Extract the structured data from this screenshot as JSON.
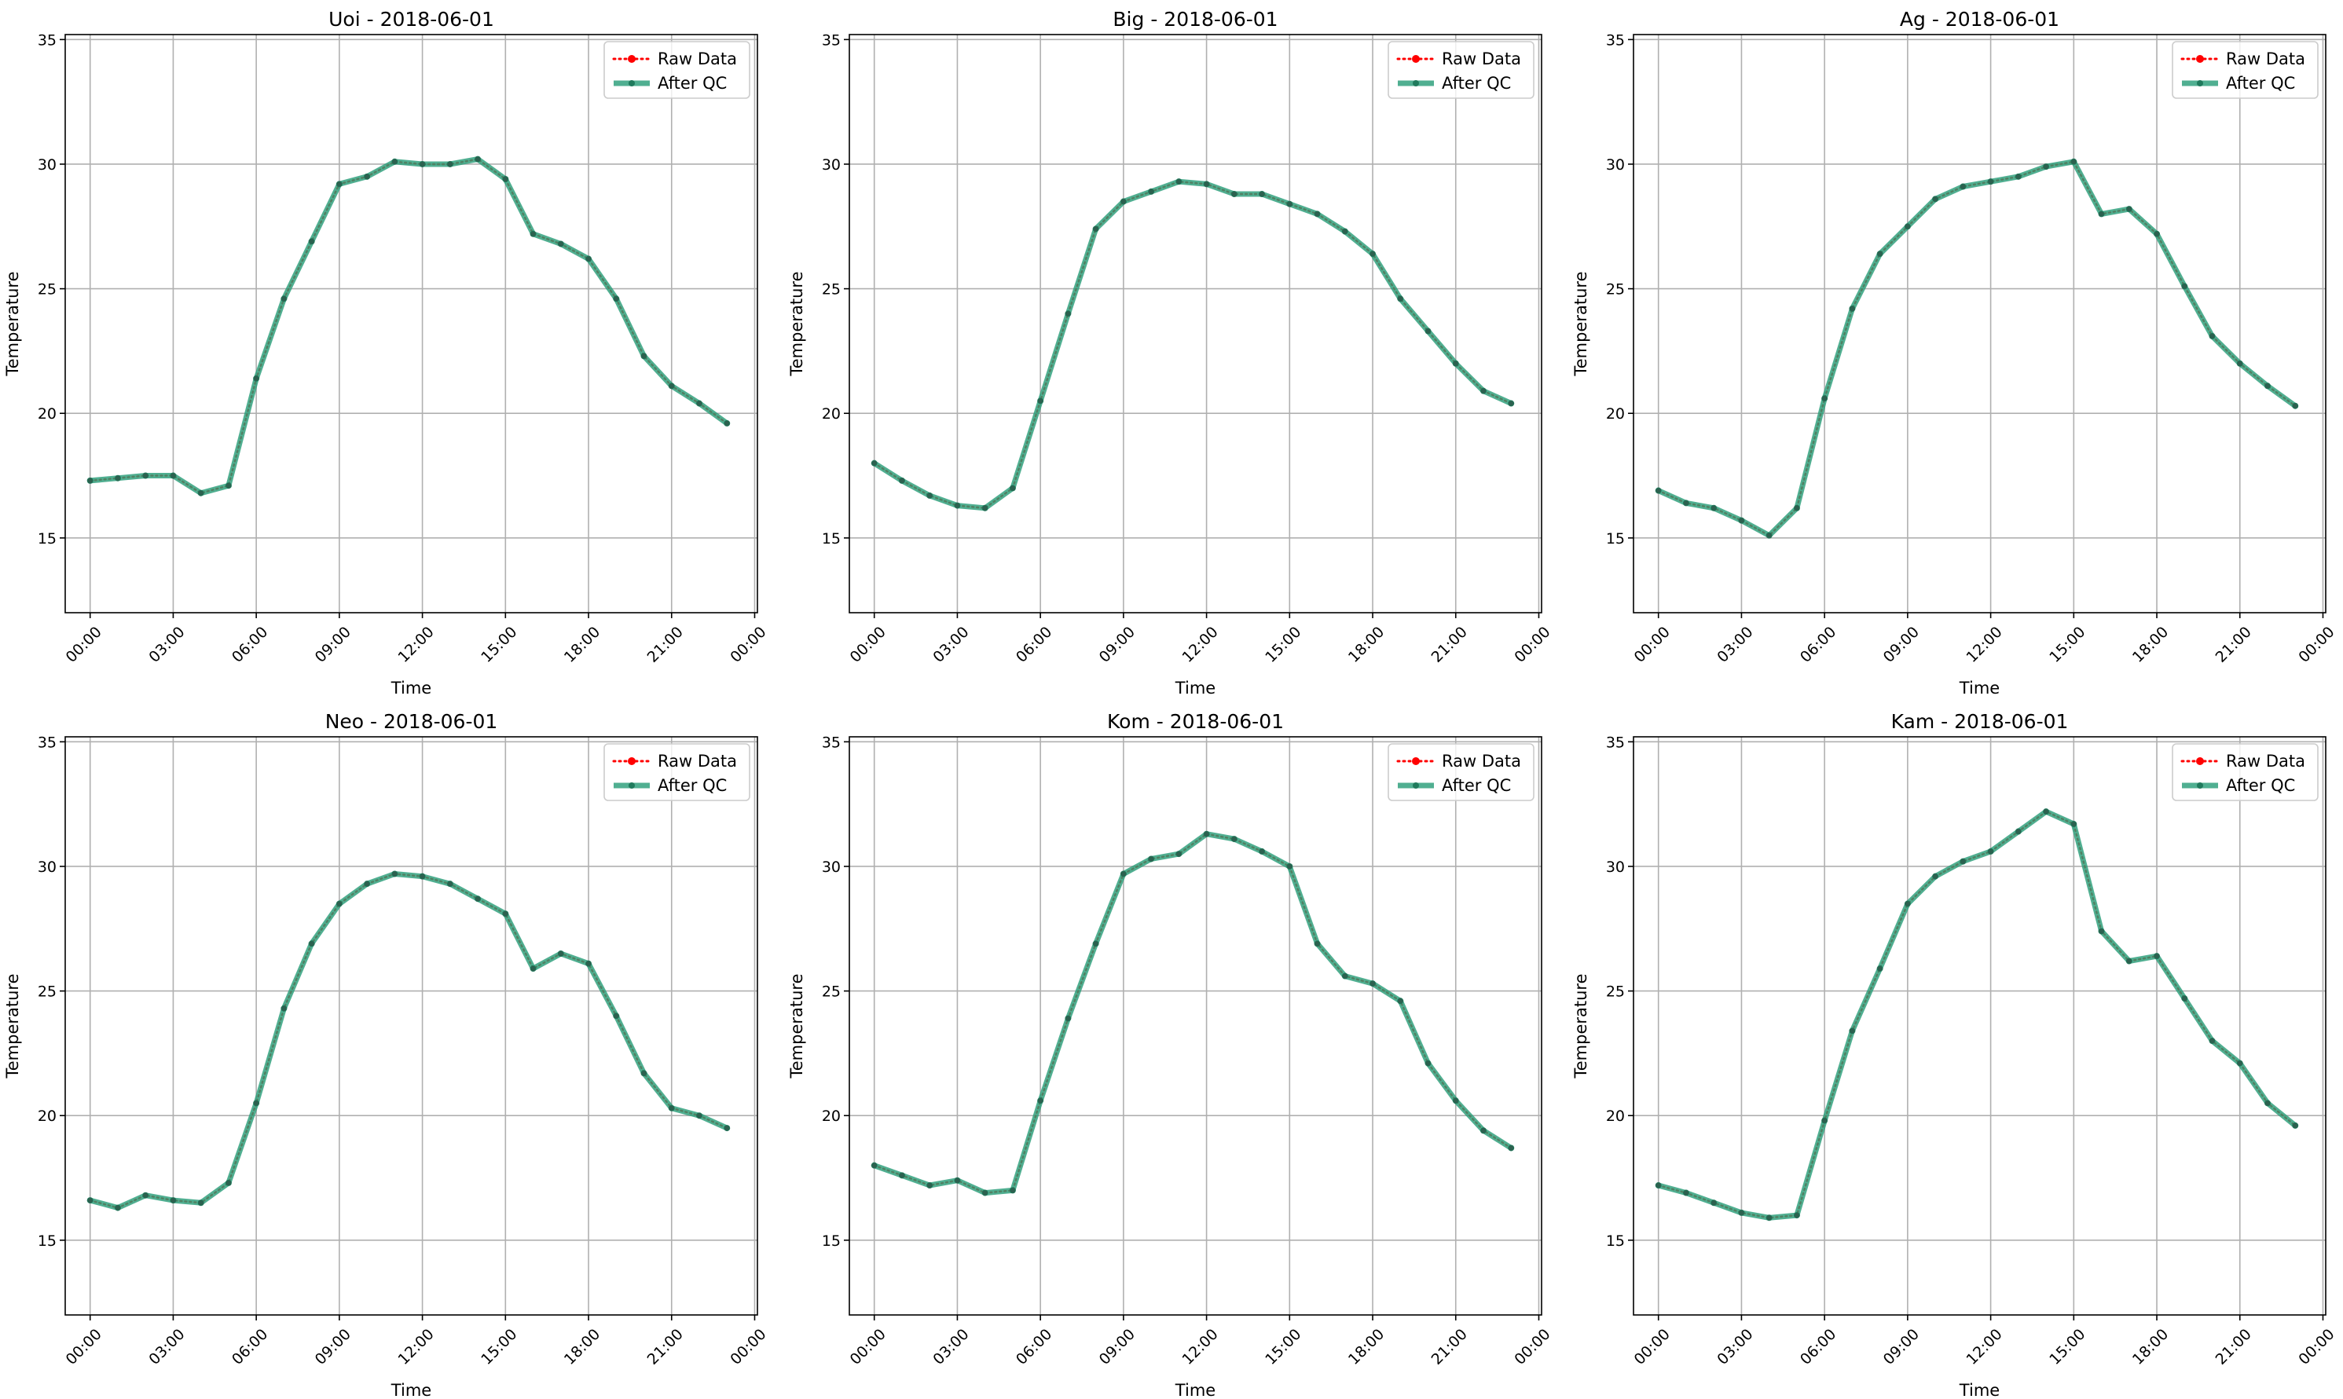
{
  "chart_data": [
    {
      "type": "line",
      "title": "Uoi - 2018-06-01",
      "xlabel": "Time",
      "ylabel": "Temperature",
      "ylim": [
        12,
        35.2
      ],
      "yticks": [
        15,
        20,
        25,
        30,
        35
      ],
      "xlim": [
        -0.9,
        24.1
      ],
      "xticks": [
        0,
        3,
        6,
        9,
        12,
        15,
        18,
        21,
        24
      ],
      "xtick_labels": [
        "00:00",
        "03:00",
        "06:00",
        "09:00",
        "12:00",
        "15:00",
        "18:00",
        "21:00",
        "00:00"
      ],
      "grid": true,
      "legend_placement": "upper-right",
      "x": [
        0,
        1,
        2,
        3,
        4,
        5,
        6,
        7,
        8,
        9,
        10,
        11,
        12,
        13,
        14,
        15,
        16,
        17,
        18,
        19,
        20,
        21,
        22,
        23
      ],
      "series": [
        {
          "name": "Raw Data",
          "color": "#ff0000",
          "style": "dotted",
          "values": [
            17.3,
            17.4,
            17.5,
            17.5,
            16.8,
            17.1,
            21.4,
            24.6,
            26.9,
            29.2,
            29.5,
            30.1,
            30.0,
            30.0,
            30.2,
            29.4,
            27.2,
            26.8,
            26.2,
            24.6,
            22.3,
            21.1,
            20.4,
            19.6
          ]
        },
        {
          "name": "After QC",
          "color": "#2a9d79",
          "style": "solid",
          "values": [
            17.3,
            17.4,
            17.5,
            17.5,
            16.8,
            17.1,
            21.4,
            24.6,
            26.9,
            29.2,
            29.5,
            30.1,
            30.0,
            30.0,
            30.2,
            29.4,
            27.2,
            26.8,
            26.2,
            24.6,
            22.3,
            21.1,
            20.4,
            19.6
          ]
        }
      ]
    },
    {
      "type": "line",
      "title": "Big - 2018-06-01",
      "xlabel": "Time",
      "ylabel": "Temperature",
      "ylim": [
        12,
        35.2
      ],
      "yticks": [
        15,
        20,
        25,
        30,
        35
      ],
      "xlim": [
        -0.9,
        24.1
      ],
      "xticks": [
        0,
        3,
        6,
        9,
        12,
        15,
        18,
        21,
        24
      ],
      "xtick_labels": [
        "00:00",
        "03:00",
        "06:00",
        "09:00",
        "12:00",
        "15:00",
        "18:00",
        "21:00",
        "00:00"
      ],
      "grid": true,
      "legend_placement": "upper-right",
      "x": [
        0,
        1,
        2,
        3,
        4,
        5,
        6,
        7,
        8,
        9,
        10,
        11,
        12,
        13,
        14,
        15,
        16,
        17,
        18,
        19,
        20,
        21,
        22,
        23
      ],
      "series": [
        {
          "name": "Raw Data",
          "color": "#ff0000",
          "style": "dotted",
          "values": [
            18.0,
            17.3,
            16.7,
            16.3,
            16.2,
            17.0,
            20.5,
            24.0,
            27.4,
            28.5,
            28.9,
            29.3,
            29.2,
            28.8,
            28.8,
            28.4,
            28.0,
            27.3,
            26.4,
            24.6,
            23.3,
            22.0,
            20.9,
            20.4
          ]
        },
        {
          "name": "After QC",
          "color": "#2a9d79",
          "style": "solid",
          "values": [
            18.0,
            17.3,
            16.7,
            16.3,
            16.2,
            17.0,
            20.5,
            24.0,
            27.4,
            28.5,
            28.9,
            29.3,
            29.2,
            28.8,
            28.8,
            28.4,
            28.0,
            27.3,
            26.4,
            24.6,
            23.3,
            22.0,
            20.9,
            20.4
          ]
        }
      ]
    },
    {
      "type": "line",
      "title": "Ag - 2018-06-01",
      "xlabel": "Time",
      "ylabel": "Temperature",
      "ylim": [
        12,
        35.2
      ],
      "yticks": [
        15,
        20,
        25,
        30,
        35
      ],
      "xlim": [
        -0.9,
        24.1
      ],
      "xticks": [
        0,
        3,
        6,
        9,
        12,
        15,
        18,
        21,
        24
      ],
      "xtick_labels": [
        "00:00",
        "03:00",
        "06:00",
        "09:00",
        "12:00",
        "15:00",
        "18:00",
        "21:00",
        "00:00"
      ],
      "grid": true,
      "legend_placement": "upper-right",
      "x": [
        0,
        1,
        2,
        3,
        4,
        5,
        6,
        7,
        8,
        9,
        10,
        11,
        12,
        13,
        14,
        15,
        16,
        17,
        18,
        19,
        20,
        21,
        22,
        23
      ],
      "series": [
        {
          "name": "Raw Data",
          "color": "#ff0000",
          "style": "dotted",
          "values": [
            16.9,
            16.4,
            16.2,
            15.7,
            15.1,
            16.2,
            20.6,
            24.2,
            26.4,
            27.5,
            28.6,
            29.1,
            29.3,
            29.5,
            29.9,
            30.1,
            28.0,
            28.2,
            27.2,
            25.1,
            23.1,
            22.0,
            21.1,
            20.3
          ]
        },
        {
          "name": "After QC",
          "color": "#2a9d79",
          "style": "solid",
          "values": [
            16.9,
            16.4,
            16.2,
            15.7,
            15.1,
            16.2,
            20.6,
            24.2,
            26.4,
            27.5,
            28.6,
            29.1,
            29.3,
            29.5,
            29.9,
            30.1,
            28.0,
            28.2,
            27.2,
            25.1,
            23.1,
            22.0,
            21.1,
            20.3
          ]
        }
      ]
    },
    {
      "type": "line",
      "title": "Neo - 2018-06-01",
      "xlabel": "Time",
      "ylabel": "Temperature",
      "ylim": [
        12,
        35.2
      ],
      "yticks": [
        15,
        20,
        25,
        30,
        35
      ],
      "xlim": [
        -0.9,
        24.1
      ],
      "xticks": [
        0,
        3,
        6,
        9,
        12,
        15,
        18,
        21,
        24
      ],
      "xtick_labels": [
        "00:00",
        "03:00",
        "06:00",
        "09:00",
        "12:00",
        "15:00",
        "18:00",
        "21:00",
        "00:00"
      ],
      "grid": true,
      "legend_placement": "upper-right",
      "x": [
        0,
        1,
        2,
        3,
        4,
        5,
        6,
        7,
        8,
        9,
        10,
        11,
        12,
        13,
        14,
        15,
        16,
        17,
        18,
        19,
        20,
        21,
        22,
        23
      ],
      "series": [
        {
          "name": "Raw Data",
          "color": "#ff0000",
          "style": "dotted",
          "values": [
            16.6,
            16.3,
            16.8,
            16.6,
            16.5,
            17.3,
            20.5,
            24.3,
            26.9,
            28.5,
            29.3,
            29.7,
            29.6,
            29.3,
            28.7,
            28.1,
            25.9,
            26.5,
            26.1,
            24.0,
            21.7,
            20.3,
            20.0,
            19.5
          ]
        },
        {
          "name": "After QC",
          "color": "#2a9d79",
          "style": "solid",
          "values": [
            16.6,
            16.3,
            16.8,
            16.6,
            16.5,
            17.3,
            20.5,
            24.3,
            26.9,
            28.5,
            29.3,
            29.7,
            29.6,
            29.3,
            28.7,
            28.1,
            25.9,
            26.5,
            26.1,
            24.0,
            21.7,
            20.3,
            20.0,
            19.5
          ]
        }
      ]
    },
    {
      "type": "line",
      "title": "Kom - 2018-06-01",
      "xlabel": "Time",
      "ylabel": "Temperature",
      "ylim": [
        12,
        35.2
      ],
      "yticks": [
        15,
        20,
        25,
        30,
        35
      ],
      "xlim": [
        -0.9,
        24.1
      ],
      "xticks": [
        0,
        3,
        6,
        9,
        12,
        15,
        18,
        21,
        24
      ],
      "xtick_labels": [
        "00:00",
        "03:00",
        "06:00",
        "09:00",
        "12:00",
        "15:00",
        "18:00",
        "21:00",
        "00:00"
      ],
      "grid": true,
      "legend_placement": "upper-right",
      "x": [
        0,
        1,
        2,
        3,
        4,
        5,
        6,
        7,
        8,
        9,
        10,
        11,
        12,
        13,
        14,
        15,
        16,
        17,
        18,
        19,
        20,
        21,
        22,
        23
      ],
      "series": [
        {
          "name": "Raw Data",
          "color": "#ff0000",
          "style": "dotted",
          "values": [
            18.0,
            17.6,
            17.2,
            17.4,
            16.9,
            17.0,
            20.6,
            23.9,
            26.9,
            29.7,
            30.3,
            30.5,
            31.3,
            31.1,
            30.6,
            30.0,
            26.9,
            25.6,
            25.3,
            24.6,
            22.1,
            20.6,
            19.4,
            18.7
          ]
        },
        {
          "name": "After QC",
          "color": "#2a9d79",
          "style": "solid",
          "values": [
            18.0,
            17.6,
            17.2,
            17.4,
            16.9,
            17.0,
            20.6,
            23.9,
            26.9,
            29.7,
            30.3,
            30.5,
            31.3,
            31.1,
            30.6,
            30.0,
            26.9,
            25.6,
            25.3,
            24.6,
            22.1,
            20.6,
            19.4,
            18.7
          ]
        }
      ]
    },
    {
      "type": "line",
      "title": "Kam - 2018-06-01",
      "xlabel": "Time",
      "ylabel": "Temperature",
      "ylim": [
        12,
        35.2
      ],
      "yticks": [
        15,
        20,
        25,
        30,
        35
      ],
      "xlim": [
        -0.9,
        24.1
      ],
      "xticks": [
        0,
        3,
        6,
        9,
        12,
        15,
        18,
        21,
        24
      ],
      "xtick_labels": [
        "00:00",
        "03:00",
        "06:00",
        "09:00",
        "12:00",
        "15:00",
        "18:00",
        "21:00",
        "00:00"
      ],
      "grid": true,
      "legend_placement": "upper-right",
      "x": [
        0,
        1,
        2,
        3,
        4,
        5,
        6,
        7,
        8,
        9,
        10,
        11,
        12,
        13,
        14,
        15,
        16,
        17,
        18,
        19,
        20,
        21,
        22,
        23
      ],
      "series": [
        {
          "name": "Raw Data",
          "color": "#ff0000",
          "style": "dotted",
          "values": [
            17.2,
            16.9,
            16.5,
            16.1,
            15.9,
            16.0,
            19.8,
            23.4,
            25.9,
            28.5,
            29.6,
            30.2,
            30.6,
            31.4,
            32.2,
            31.7,
            27.4,
            26.2,
            26.4,
            24.7,
            23.0,
            22.1,
            20.5,
            19.6
          ]
        },
        {
          "name": "After QC",
          "color": "#2a9d79",
          "style": "solid",
          "values": [
            17.2,
            16.9,
            16.5,
            16.1,
            15.9,
            16.0,
            19.8,
            23.4,
            25.9,
            28.5,
            29.6,
            30.2,
            30.6,
            31.4,
            32.2,
            31.7,
            27.4,
            26.2,
            26.4,
            24.7,
            23.0,
            22.1,
            20.5,
            19.6
          ]
        }
      ]
    }
  ]
}
